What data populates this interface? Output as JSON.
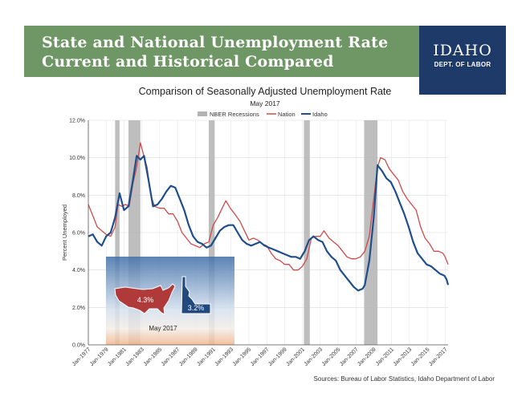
{
  "banner": {
    "title": "State and National Unemployment Rate\nCurrent and Historical Compared",
    "logo_name": "IDAHO",
    "logo_dept": "DEPT. OF LABOR"
  },
  "source": "Sources: Bureau of Labor Statistics, Idaho Department of Labor",
  "colors": {
    "banner": "#6f9665",
    "nation": "#cf4b4b",
    "idaho": "#1f4e8c",
    "recession": "#b3b3b3"
  },
  "chart_data": {
    "type": "line",
    "title": "Comparison of Seasonally Adjusted Unemployment Rate",
    "subtitle": "May 2017",
    "ylabel": "Percent Unemployed",
    "xlabel": "",
    "ylim": [
      0,
      12
    ],
    "xlim": [
      "1977-01",
      "2017-05"
    ],
    "grid": true,
    "legend": {
      "placement": "top-center",
      "entries": [
        "NBER Recessions",
        "Nation",
        "Idaho"
      ]
    },
    "y_ticks": [
      "0.0%",
      "2.0%",
      "4.0%",
      "6.0%",
      "8.0%",
      "10.0%",
      "12.0%"
    ],
    "x_ticks": [
      "Jan-1977",
      "Jan-1979",
      "Jan-1981",
      "Jan-1983",
      "Jan-1985",
      "Jan-1987",
      "Jan-1989",
      "Jan-1991",
      "Jan-1993",
      "Jan-1995",
      "Jan-1997",
      "Jan-1999",
      "Jan-2001",
      "Jan-2003",
      "Jan-2005",
      "Jan-2007",
      "Jan-2009",
      "Jan-2011",
      "Jan-2013",
      "Jan-2015",
      "Jan-2017"
    ],
    "recessions": [
      [
        "1980-01",
        "1980-07"
      ],
      [
        "1981-07",
        "1982-11"
      ],
      [
        "1990-07",
        "1991-03"
      ],
      [
        "2001-03",
        "2001-11"
      ],
      [
        "2007-12",
        "2009-06"
      ]
    ],
    "series": [
      {
        "name": "Nation",
        "x": [
          "1977-01",
          "1977-07",
          "1978-01",
          "1978-07",
          "1979-01",
          "1979-07",
          "1980-01",
          "1980-05",
          "1980-10",
          "1981-03",
          "1981-08",
          "1982-01",
          "1982-06",
          "1982-11",
          "1983-03",
          "1983-08",
          "1984-01",
          "1984-06",
          "1985-01",
          "1985-07",
          "1986-01",
          "1986-07",
          "1987-01",
          "1987-07",
          "1988-01",
          "1988-07",
          "1989-01",
          "1989-07",
          "1990-01",
          "1990-07",
          "1991-01",
          "1991-07",
          "1992-01",
          "1992-06",
          "1992-12",
          "1993-06",
          "1994-01",
          "1994-07",
          "1995-01",
          "1995-07",
          "1996-01",
          "1996-07",
          "1997-01",
          "1997-07",
          "1998-01",
          "1998-07",
          "1999-01",
          "1999-07",
          "2000-01",
          "2000-07",
          "2001-01",
          "2001-07",
          "2002-01",
          "2002-07",
          "2003-01",
          "2003-06",
          "2004-01",
          "2004-07",
          "2005-01",
          "2005-07",
          "2006-01",
          "2006-07",
          "2007-01",
          "2007-07",
          "2008-01",
          "2008-07",
          "2009-01",
          "2009-06",
          "2009-10",
          "2010-04",
          "2010-10",
          "2011-04",
          "2011-10",
          "2012-04",
          "2012-10",
          "2013-04",
          "2013-10",
          "2014-04",
          "2014-10",
          "2015-04",
          "2015-10",
          "2016-04",
          "2016-10",
          "2017-01",
          "2017-05"
        ],
        "y": [
          7.5,
          6.9,
          6.3,
          6.1,
          5.9,
          5.8,
          6.3,
          7.5,
          7.4,
          7.5,
          7.4,
          8.6,
          9.5,
          10.8,
          10.2,
          9.5,
          8.0,
          7.4,
          7.3,
          7.3,
          7.0,
          7.0,
          6.6,
          6.0,
          5.7,
          5.4,
          5.3,
          5.2,
          5.4,
          5.5,
          6.4,
          6.8,
          7.3,
          7.7,
          7.3,
          7.0,
          6.6,
          6.1,
          5.6,
          5.7,
          5.6,
          5.4,
          5.3,
          4.9,
          4.6,
          4.5,
          4.3,
          4.3,
          4.0,
          4.0,
          4.2,
          4.6,
          5.7,
          5.8,
          5.8,
          6.1,
          5.7,
          5.5,
          5.3,
          5.0,
          4.7,
          4.6,
          4.6,
          4.7,
          5.0,
          5.8,
          7.8,
          9.5,
          10.0,
          9.9,
          9.4,
          9.1,
          8.8,
          8.2,
          7.8,
          7.5,
          7.2,
          6.3,
          5.7,
          5.4,
          5.0,
          5.0,
          4.9,
          4.7,
          4.3
        ]
      },
      {
        "name": "Idaho",
        "x": [
          "1977-01",
          "1977-07",
          "1978-01",
          "1978-07",
          "1979-01",
          "1979-07",
          "1980-01",
          "1980-07",
          "1981-01",
          "1981-07",
          "1982-01",
          "1982-06",
          "1982-11",
          "1983-04",
          "1983-10",
          "1984-04",
          "1984-10",
          "1985-04",
          "1985-10",
          "1986-04",
          "1986-10",
          "1987-04",
          "1987-10",
          "1988-04",
          "1988-10",
          "1989-04",
          "1989-10",
          "1990-04",
          "1990-10",
          "1991-04",
          "1991-10",
          "1992-04",
          "1992-10",
          "1993-04",
          "1993-10",
          "1994-04",
          "1994-10",
          "1995-04",
          "1995-10",
          "1996-04",
          "1996-10",
          "1997-04",
          "1997-10",
          "1998-04",
          "1998-10",
          "1999-04",
          "1999-10",
          "2000-04",
          "2000-10",
          "2001-04",
          "2001-10",
          "2002-04",
          "2002-10",
          "2003-04",
          "2003-10",
          "2004-04",
          "2004-10",
          "2005-04",
          "2005-10",
          "2006-04",
          "2006-10",
          "2007-04",
          "2007-10",
          "2008-01",
          "2008-07",
          "2009-01",
          "2009-06",
          "2009-12",
          "2010-06",
          "2010-12",
          "2011-06",
          "2011-12",
          "2012-06",
          "2012-12",
          "2013-06",
          "2013-12",
          "2014-06",
          "2014-12",
          "2015-06",
          "2015-12",
          "2016-06",
          "2016-12",
          "2017-03",
          "2017-05"
        ],
        "y": [
          5.8,
          5.9,
          5.5,
          5.3,
          5.8,
          6.0,
          6.8,
          8.1,
          7.2,
          7.4,
          8.8,
          10.1,
          9.9,
          10.1,
          8.8,
          7.4,
          7.5,
          7.8,
          8.2,
          8.5,
          8.4,
          7.8,
          7.2,
          6.4,
          5.8,
          5.5,
          5.4,
          5.2,
          5.3,
          5.7,
          6.1,
          6.3,
          6.4,
          6.4,
          6.0,
          5.6,
          5.4,
          5.3,
          5.4,
          5.5,
          5.3,
          5.2,
          5.1,
          5.0,
          4.9,
          4.8,
          4.7,
          4.7,
          4.6,
          5.0,
          5.6,
          5.8,
          5.6,
          5.5,
          5.0,
          4.7,
          4.5,
          4.0,
          3.7,
          3.4,
          3.1,
          2.9,
          3.0,
          3.2,
          4.5,
          6.8,
          9.6,
          9.3,
          8.9,
          8.7,
          8.2,
          7.6,
          7.0,
          6.3,
          5.5,
          4.9,
          4.6,
          4.3,
          4.2,
          4.0,
          3.8,
          3.7,
          3.5,
          3.2
        ]
      }
    ],
    "inset": {
      "nation_value": "4.3%",
      "idaho_value": "3.2%",
      "label": "May 2017"
    }
  }
}
